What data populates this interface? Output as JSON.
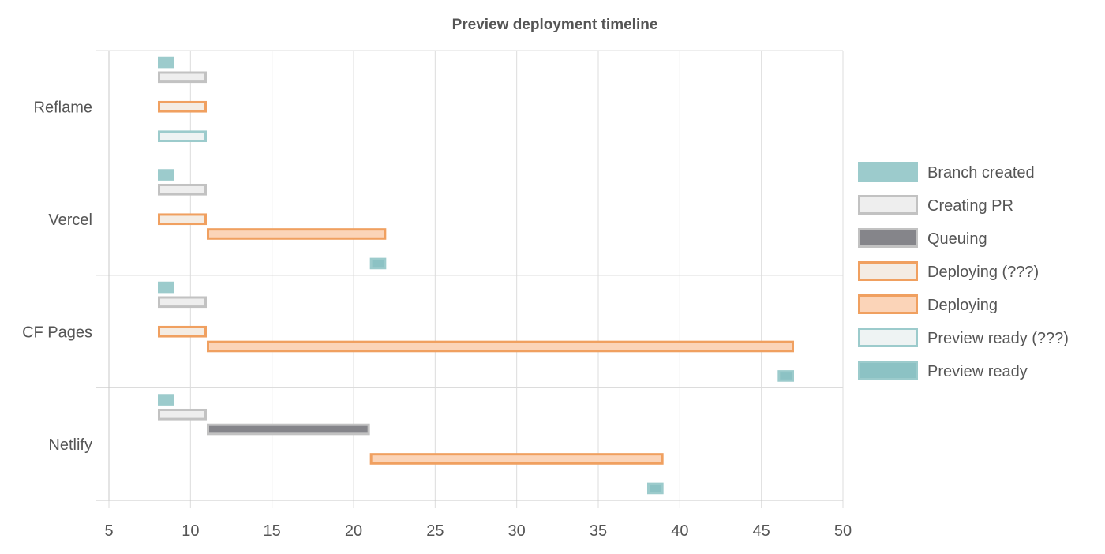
{
  "chart_data": {
    "type": "bar",
    "orientation": "horizontal",
    "title": "Preview deployment timeline",
    "xlabel": "",
    "ylabel": "",
    "xlim": [
      5,
      50
    ],
    "x_ticks": [
      5,
      10,
      15,
      20,
      25,
      30,
      35,
      40,
      45,
      50
    ],
    "categories": [
      "Reflame",
      "Vercel",
      "CF Pages",
      "Netlify"
    ],
    "grid": true,
    "legend_position": "right",
    "series": [
      {
        "name": "Branch created",
        "color": "#9ccbcc",
        "border": "#9ccbcc",
        "values": [
          [
            8,
            9
          ],
          [
            8,
            9
          ],
          [
            8,
            9
          ],
          [
            8,
            9
          ]
        ]
      },
      {
        "name": "Creating PR",
        "color": "#eeeeee",
        "border": "#c2c2c2",
        "values": [
          [
            8,
            11
          ],
          [
            8,
            11
          ],
          [
            8,
            11
          ],
          [
            8,
            11
          ]
        ]
      },
      {
        "name": "Queuing",
        "color": "#85858a",
        "border": "#c2c2c2",
        "values": [
          null,
          null,
          null,
          [
            11,
            21
          ]
        ]
      },
      {
        "name": "Deploying (???)",
        "color": "#f4ece3",
        "border": "#f0a060",
        "values": [
          [
            8,
            11
          ],
          [
            8,
            11
          ],
          [
            8,
            11
          ],
          null
        ]
      },
      {
        "name": "Deploying",
        "color": "#fbd4b8",
        "border": "#f0a060",
        "values": [
          null,
          [
            11,
            22
          ],
          [
            11,
            47
          ],
          [
            21,
            39
          ]
        ]
      },
      {
        "name": "Preview ready (???)",
        "color": "#eef3f3",
        "border": "#9ccbcc",
        "values": [
          [
            8,
            11
          ],
          null,
          null,
          null
        ]
      },
      {
        "name": "Preview ready",
        "color": "#8cc2c4",
        "border": "#9ccbcc",
        "values": [
          null,
          [
            21,
            22
          ],
          [
            46,
            47
          ],
          [
            38,
            39
          ]
        ]
      }
    ]
  }
}
